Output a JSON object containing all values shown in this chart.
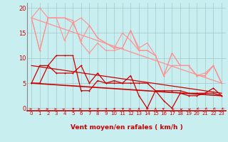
{
  "background_color": "#c8eef0",
  "grid_color": "#a0c8cc",
  "x_labels": [
    "0",
    "1",
    "2",
    "3",
    "4",
    "5",
    "6",
    "7",
    "8",
    "9",
    "10",
    "11",
    "12",
    "13",
    "14",
    "15",
    "16",
    "17",
    "18",
    "19",
    "20",
    "21",
    "22",
    "23"
  ],
  "xlabel": "Vent moyen/en rafales ( km/h )",
  "ylabel_ticks": [
    0,
    5,
    10,
    15,
    20
  ],
  "xlim": [
    -0.5,
    23.5
  ],
  "ylim": [
    -0.5,
    21
  ],
  "lines": [
    {
      "x": [
        0,
        1,
        2,
        3,
        4,
        5,
        6,
        7,
        8,
        9,
        10,
        11,
        12,
        13,
        14,
        15,
        16,
        17,
        18,
        19,
        20,
        21,
        22,
        23
      ],
      "y": [
        18,
        11.5,
        18,
        18,
        18,
        17.5,
        13,
        11,
        13,
        11.5,
        11.5,
        12,
        15.5,
        11.5,
        11.5,
        10.5,
        6.5,
        11,
        8.5,
        8.5,
        6.5,
        6.5,
        8.5,
        5
      ],
      "color": "#ff9090",
      "lw": 0.8,
      "marker": "+"
    },
    {
      "x": [
        0,
        1,
        2,
        3,
        4,
        5,
        6,
        7,
        8,
        9,
        10,
        11,
        12,
        13,
        14,
        15,
        16,
        17,
        18,
        19,
        20,
        21,
        22,
        23
      ],
      "y": [
        18,
        20,
        18,
        18,
        13.5,
        17,
        18,
        16.5,
        14,
        13,
        12,
        15,
        13.5,
        11.5,
        11.5,
        10.5,
        6.5,
        8.5,
        8.5,
        8.5,
        6.5,
        7,
        8.5,
        5
      ],
      "color": "#ff9090",
      "lw": 0.8,
      "marker": "+"
    },
    {
      "x": [
        0,
        1,
        2,
        3,
        4,
        5,
        6,
        7,
        8,
        9,
        10,
        11,
        12,
        13,
        14,
        15,
        16,
        17,
        18,
        19,
        20,
        21,
        22,
        23
      ],
      "y": [
        18,
        11.5,
        18,
        18,
        18,
        17,
        13.5,
        16.5,
        14,
        13,
        12,
        12,
        15.5,
        12,
        13,
        10.5,
        6.5,
        11,
        8.5,
        8.5,
        6.5,
        6.5,
        8.5,
        5
      ],
      "color": "#ff9090",
      "lw": 0.8,
      "marker": "+"
    },
    {
      "x": [
        0,
        23
      ],
      "y": [
        18,
        5
      ],
      "color": "#ff9090",
      "lw": 0.9,
      "marker": null
    },
    {
      "x": [
        0,
        1,
        2,
        3,
        4,
        5,
        6,
        7,
        8,
        9,
        10,
        11,
        12,
        13,
        14,
        15,
        16,
        17,
        18,
        19,
        20,
        21,
        22,
        23
      ],
      "y": [
        5,
        5,
        8.5,
        10.5,
        10.5,
        10.5,
        3.5,
        3.5,
        5.5,
        5,
        5,
        5,
        6.5,
        2.5,
        0,
        3.5,
        1.5,
        0,
        3,
        2.5,
        2.5,
        3,
        4,
        2.5
      ],
      "color": "#cc0000",
      "lw": 0.9,
      "marker": "+"
    },
    {
      "x": [
        0,
        1,
        2,
        3,
        4,
        5,
        6,
        7,
        8,
        9,
        10,
        11,
        12,
        13,
        14,
        15,
        16,
        17,
        18,
        19,
        20,
        21,
        22,
        23
      ],
      "y": [
        5,
        8.5,
        8.5,
        7,
        7,
        7,
        8.5,
        5,
        7,
        5,
        5.5,
        5,
        5,
        5,
        5,
        3.5,
        3.5,
        3.5,
        3.5,
        3,
        3,
        3,
        3,
        2.5
      ],
      "color": "#cc0000",
      "lw": 0.9,
      "marker": "+"
    },
    {
      "x": [
        0,
        23
      ],
      "y": [
        5,
        2.5
      ],
      "color": "#cc0000",
      "lw": 1.2,
      "marker": null
    },
    {
      "x": [
        0,
        23
      ],
      "y": [
        8.5,
        3
      ],
      "color": "#cc0000",
      "lw": 0.9,
      "marker": null
    }
  ],
  "arrow_angles": [
    0,
    0,
    0,
    0,
    30,
    45,
    0,
    45,
    60,
    60,
    60,
    45,
    0,
    90,
    120,
    90,
    135,
    150,
    150,
    150,
    210,
    210,
    210,
    210
  ],
  "arrow_color": "#cc0000"
}
